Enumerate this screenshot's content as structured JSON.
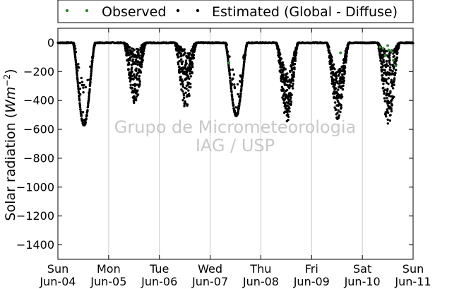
{
  "chart_data": {
    "type": "scatter",
    "title": "",
    "ylabel": "Solar radiation (Wm^-2)",
    "ylabel_parts": {
      "main": "Solar radiation (",
      "unit": "Wm",
      "exp": "−2",
      "close": ")"
    },
    "xlabel": "",
    "ylim": [
      -1500,
      100
    ],
    "yticks": [
      0,
      -200,
      -400,
      -600,
      -800,
      -1000,
      -1200,
      -1400
    ],
    "xlim": [
      0,
      7
    ],
    "xticks": [
      {
        "x": 0,
        "day": "Sun",
        "date": "Jun-04"
      },
      {
        "x": 1,
        "day": "Mon",
        "date": "Jun-05"
      },
      {
        "x": 2,
        "day": "Tue",
        "date": "Jun-06"
      },
      {
        "x": 3,
        "day": "Wed",
        "date": "Jun-07"
      },
      {
        "x": 4,
        "day": "Thu",
        "date": "Jun-08"
      },
      {
        "x": 5,
        "day": "Fri",
        "date": "Jun-09"
      },
      {
        "x": 6,
        "day": "Sat",
        "date": "Jun-10"
      },
      {
        "x": 7,
        "day": "Sun",
        "date": "Jun-11"
      }
    ],
    "grid": "vertical",
    "legend_placement": "top, outside",
    "colors": {
      "observed": "#2e8b2e",
      "estimated": "#000000"
    },
    "series": [
      {
        "name": "Observed",
        "x": [
          3.37,
          5.57,
          6.35,
          6.41,
          6.45,
          6.5,
          6.52,
          6.57,
          6.61,
          6.66
        ],
        "y": [
          -140,
          -70,
          -30,
          -40,
          -90,
          -20,
          -50,
          -60,
          -120,
          -160
        ]
      },
      {
        "name": "Estimated (Global - Diffuse)",
        "days": [
          {
            "peak": -580,
            "profile": "clear"
          },
          {
            "peak": -430,
            "profile": "cloudy"
          },
          {
            "peak": -460,
            "profile": "cloudy"
          },
          {
            "peak": -510,
            "profile": "clear"
          },
          {
            "peak": -550,
            "profile": "partial"
          },
          {
            "peak": -540,
            "profile": "partial"
          },
          {
            "peak": -590,
            "profile": "cloudy"
          }
        ]
      }
    ]
  },
  "watermark": {
    "line1": "Grupo de Micrometeorologia",
    "line2": "IAG / USP"
  }
}
